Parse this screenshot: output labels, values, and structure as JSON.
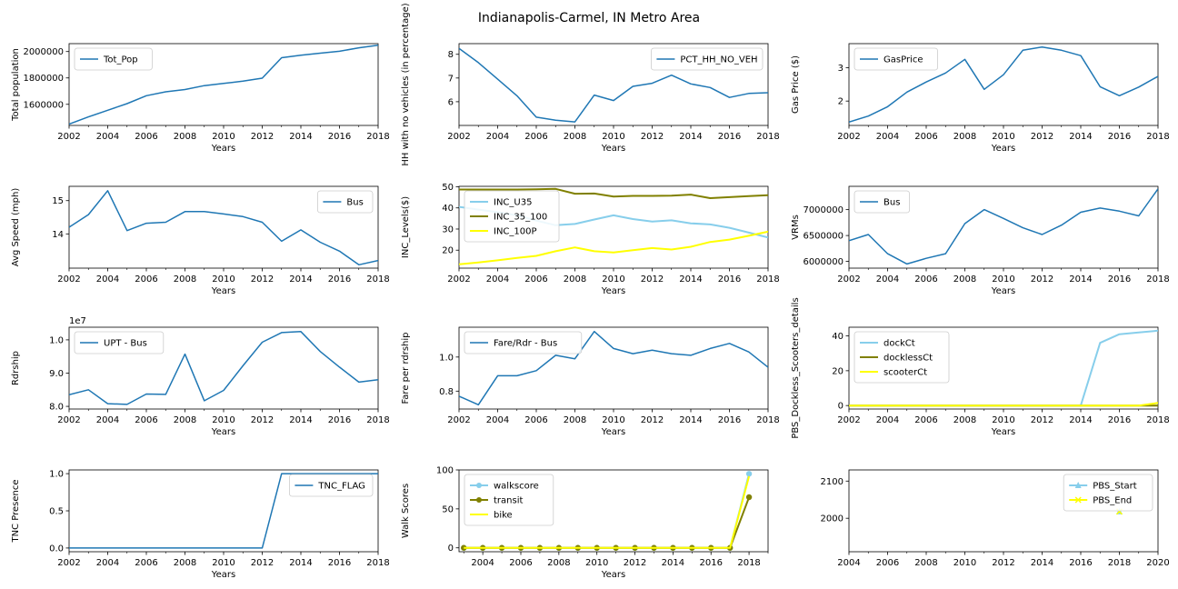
{
  "figure_title": "Indianapolis-Carmel, IN Metro Area",
  "colors": {
    "default_blue": "#1f77b4",
    "skyblue": "#87ceeb",
    "olive": "#808000",
    "yellow": "#ffff00"
  },
  "chart_data": [
    {
      "type": "line",
      "xlabel": "Years",
      "ylabel": "Total population",
      "xlim": [
        2002,
        2018
      ],
      "ylim": [
        1440000,
        2060000
      ],
      "xticks": [
        "2002",
        "2004",
        "2006",
        "2008",
        "2010",
        "2012",
        "2014",
        "2016",
        "2018"
      ],
      "yticks": [
        "1600000",
        "1800000",
        "2000000"
      ],
      "legend_loc": "upper-left",
      "x": [
        2002,
        2003,
        2004,
        2005,
        2006,
        2007,
        2008,
        2009,
        2010,
        2011,
        2012,
        2013,
        2014,
        2015,
        2016,
        2017,
        2018
      ],
      "series": [
        {
          "name": "Tot_Pop",
          "color": "#1f77b4",
          "marker": "none",
          "values": [
            1450000,
            1505000,
            1555000,
            1605000,
            1665000,
            1695000,
            1712000,
            1742000,
            1758000,
            1776000,
            1798000,
            1953000,
            1972000,
            1988000,
            2002000,
            2028000,
            2048000
          ]
        }
      ]
    },
    {
      "type": "line",
      "xlabel": "Years",
      "ylabel": "HH with no vehicles (in percentage)",
      "xlim": [
        2002,
        2018
      ],
      "ylim": [
        5.0,
        8.45
      ],
      "xticks": [
        "2002",
        "2004",
        "2006",
        "2008",
        "2010",
        "2012",
        "2014",
        "2016",
        "2018"
      ],
      "yticks": [
        "6",
        "7",
        "8"
      ],
      "legend_loc": "upper-right",
      "x": [
        2002,
        2003,
        2004,
        2005,
        2006,
        2007,
        2008,
        2009,
        2010,
        2011,
        2012,
        2013,
        2014,
        2015,
        2016,
        2017,
        2018
      ],
      "series": [
        {
          "name": "PCT_HH_NO_VEH",
          "color": "#1f77b4",
          "marker": "none",
          "values": [
            8.25,
            7.65,
            6.95,
            6.25,
            5.35,
            5.22,
            5.15,
            6.28,
            6.05,
            6.65,
            6.78,
            7.12,
            6.75,
            6.6,
            6.18,
            6.35,
            6.38
          ]
        }
      ]
    },
    {
      "type": "line",
      "xlabel": "Years",
      "ylabel": "Gas Price ($)",
      "xlim": [
        2002,
        2018
      ],
      "ylim": [
        1.27,
        3.72
      ],
      "xticks": [
        "2002",
        "2004",
        "2006",
        "2008",
        "2010",
        "2012",
        "2014",
        "2016",
        "2018"
      ],
      "yticks": [
        "2",
        "3"
      ],
      "legend_loc": "upper-left",
      "x": [
        2002,
        2003,
        2004,
        2005,
        2006,
        2007,
        2008,
        2009,
        2010,
        2011,
        2012,
        2013,
        2014,
        2015,
        2016,
        2017,
        2018
      ],
      "series": [
        {
          "name": "GasPrice",
          "color": "#1f77b4",
          "marker": "none",
          "values": [
            1.37,
            1.55,
            1.83,
            2.27,
            2.57,
            2.84,
            3.25,
            2.35,
            2.79,
            3.52,
            3.62,
            3.52,
            3.36,
            2.43,
            2.16,
            2.42,
            2.74
          ]
        }
      ]
    },
    {
      "type": "line",
      "xlabel": "Years",
      "ylabel": "Avg Speed (mph)",
      "xlim": [
        2002,
        2018
      ],
      "ylim": [
        12.97,
        15.43
      ],
      "xticks": [
        "2002",
        "2004",
        "2006",
        "2008",
        "2010",
        "2012",
        "2014",
        "2016",
        "2018"
      ],
      "yticks": [
        "14",
        "15"
      ],
      "legend_loc": "upper-right",
      "x": [
        2002,
        2003,
        2004,
        2005,
        2006,
        2007,
        2008,
        2009,
        2010,
        2011,
        2012,
        2013,
        2014,
        2015,
        2016,
        2017,
        2018
      ],
      "series": [
        {
          "name": "Bus",
          "color": "#1f77b4",
          "marker": "none",
          "values": [
            14.2,
            14.58,
            15.3,
            14.1,
            14.32,
            14.35,
            14.67,
            14.67,
            14.6,
            14.52,
            14.35,
            13.78,
            14.12,
            13.75,
            13.48,
            13.07,
            13.2
          ]
        }
      ]
    },
    {
      "type": "line",
      "xlabel": "Years",
      "ylabel": "INC_Levels($)",
      "xlim": [
        2002,
        2018
      ],
      "ylim": [
        11.5,
        50.2
      ],
      "xticks": [
        "2002",
        "2004",
        "2006",
        "2008",
        "2010",
        "2012",
        "2014",
        "2016",
        "2018"
      ],
      "yticks": [
        "20",
        "30",
        "40",
        "50"
      ],
      "legend_loc": "upper-left",
      "x": [
        2002,
        2003,
        2004,
        2005,
        2006,
        2007,
        2008,
        2009,
        2010,
        2011,
        2012,
        2013,
        2014,
        2015,
        2016,
        2017,
        2018
      ],
      "series": [
        {
          "name": "INC_U35",
          "color": "#87ceeb",
          "marker": "none",
          "values": [
            40.5,
            39.2,
            38.0,
            36.5,
            34.0,
            31.8,
            32.4,
            34.5,
            36.5,
            34.7,
            33.5,
            34.1,
            32.7,
            32.2,
            30.6,
            28.3,
            26.0
          ]
        },
        {
          "name": "INC_35_100",
          "color": "#808000",
          "marker": "none",
          "values": [
            48.7,
            48.7,
            48.7,
            48.7,
            48.8,
            49.0,
            46.7,
            46.8,
            45.4,
            45.7,
            45.7,
            45.8,
            46.3,
            44.6,
            45.1,
            45.6,
            46.0
          ]
        },
        {
          "name": "INC_100P",
          "color": "#ffff00",
          "marker": "none",
          "values": [
            13.3,
            14.2,
            15.2,
            16.3,
            17.3,
            19.5,
            21.3,
            19.5,
            18.9,
            20.0,
            21.0,
            20.3,
            21.6,
            23.9,
            25.0,
            26.8,
            28.8
          ]
        }
      ]
    },
    {
      "type": "line",
      "xlabel": "Years",
      "ylabel": "VRMs",
      "xlim": [
        2002,
        2018
      ],
      "ylim": [
        5870000,
        7450000
      ],
      "xticks": [
        "2002",
        "2004",
        "2006",
        "2008",
        "2010",
        "2012",
        "2014",
        "2016",
        "2018"
      ],
      "yticks": [
        "6000000",
        "6500000",
        "7000000"
      ],
      "legend_loc": "upper-left",
      "x": [
        2002,
        2003,
        2004,
        2005,
        2006,
        2007,
        2008,
        2009,
        2010,
        2011,
        2012,
        2013,
        2014,
        2015,
        2016,
        2017,
        2018
      ],
      "series": [
        {
          "name": "Bus",
          "color": "#1f77b4",
          "marker": "none",
          "values": [
            6400000,
            6520000,
            6150000,
            5950000,
            6060000,
            6150000,
            6730000,
            7000000,
            6830000,
            6650000,
            6520000,
            6700000,
            6950000,
            7030000,
            6970000,
            6880000,
            7400000
          ]
        }
      ]
    },
    {
      "type": "line",
      "xlabel": "Years",
      "ylabel": "Rdrship",
      "offset_text": "1e7",
      "xlim": [
        2002,
        2018
      ],
      "ylim": [
        7.92,
        10.38
      ],
      "xticks": [
        "2002",
        "2004",
        "2006",
        "2008",
        "2010",
        "2012",
        "2014",
        "2016",
        "2018"
      ],
      "yticks": [
        "8.0",
        "9.0",
        "1.0"
      ],
      "ytick_values": [
        8.0,
        9.0,
        10.0
      ],
      "legend_loc": "upper-left",
      "x": [
        2002,
        2003,
        2004,
        2005,
        2006,
        2007,
        2008,
        2009,
        2010,
        2011,
        2012,
        2013,
        2014,
        2015,
        2016,
        2017,
        2018
      ],
      "series": [
        {
          "name": "UPT - Bus",
          "color": "#1f77b4",
          "marker": "none",
          "values": [
            8.35,
            8.5,
            8.08,
            8.06,
            8.37,
            8.36,
            9.57,
            8.17,
            8.48,
            9.22,
            9.93,
            10.22,
            10.25,
            9.65,
            9.18,
            8.73,
            8.8
          ]
        }
      ]
    },
    {
      "type": "line",
      "xlabel": "Years",
      "ylabel": "Fare per rdrship",
      "xlim": [
        2002,
        2018
      ],
      "ylim": [
        0.695,
        1.175
      ],
      "xticks": [
        "2002",
        "2004",
        "2006",
        "2008",
        "2010",
        "2012",
        "2014",
        "2016",
        "2018"
      ],
      "yticks": [
        "0.8",
        "1.0"
      ],
      "legend_loc": "upper-left",
      "x": [
        2002,
        2003,
        2004,
        2005,
        2006,
        2007,
        2008,
        2009,
        2010,
        2011,
        2012,
        2013,
        2014,
        2015,
        2016,
        2017,
        2018
      ],
      "series": [
        {
          "name": "Fare/Rdr - Bus",
          "color": "#1f77b4",
          "marker": "none",
          "values": [
            0.77,
            0.72,
            0.89,
            0.89,
            0.92,
            1.01,
            0.99,
            1.15,
            1.05,
            1.02,
            1.04,
            1.02,
            1.01,
            1.05,
            1.08,
            1.03,
            0.94
          ]
        }
      ]
    },
    {
      "type": "line",
      "xlabel": "Years",
      "ylabel": "PBS_Dockless_Scooters_details",
      "xlim": [
        2002,
        2018
      ],
      "ylim": [
        -2,
        45
      ],
      "xticks": [
        "2002",
        "2004",
        "2006",
        "2008",
        "2010",
        "2012",
        "2014",
        "2016",
        "2018"
      ],
      "yticks": [
        "0",
        "20",
        "40"
      ],
      "legend_loc": "upper-left",
      "x": [
        2002,
        2003,
        2004,
        2005,
        2006,
        2007,
        2008,
        2009,
        2010,
        2011,
        2012,
        2013,
        2014,
        2015,
        2016,
        2017,
        2018
      ],
      "series": [
        {
          "name": "dockCt",
          "color": "#87ceeb",
          "marker": "none",
          "values": [
            0,
            0,
            0,
            0,
            0,
            0,
            0,
            0,
            0,
            0,
            0,
            0,
            0,
            36,
            41,
            42,
            43
          ]
        },
        {
          "name": "docklessCt",
          "color": "#808000",
          "marker": "none",
          "values": [
            0,
            0,
            0,
            0,
            0,
            0,
            0,
            0,
            0,
            0,
            0,
            0,
            0,
            0,
            0,
            0,
            0
          ]
        },
        {
          "name": "scooterCt",
          "color": "#ffff00",
          "marker": "none",
          "values": [
            0,
            0,
            0,
            0,
            0,
            0,
            0,
            0,
            0,
            0,
            0,
            0,
            0,
            0,
            0,
            0,
            1.5
          ]
        }
      ]
    },
    {
      "type": "line",
      "xlabel": "Years",
      "ylabel": "TNC Presence",
      "xlim": [
        2002,
        2018
      ],
      "ylim": [
        -0.05,
        1.05
      ],
      "xticks": [
        "2002",
        "2004",
        "2006",
        "2008",
        "2010",
        "2012",
        "2014",
        "2016",
        "2018"
      ],
      "yticks": [
        "0.0",
        "0.5",
        "1.0"
      ],
      "legend_loc": "upper-right",
      "x": [
        2002,
        2003,
        2004,
        2005,
        2006,
        2007,
        2008,
        2009,
        2010,
        2011,
        2012,
        2013,
        2014,
        2015,
        2016,
        2017,
        2018
      ],
      "series": [
        {
          "name": "TNC_FLAG",
          "color": "#1f77b4",
          "marker": "none",
          "values": [
            0,
            0,
            0,
            0,
            0,
            0,
            0,
            0,
            0,
            0,
            0,
            1,
            1,
            1,
            1,
            1,
            1
          ]
        }
      ]
    },
    {
      "type": "line",
      "xlabel": "Years",
      "ylabel": "Walk Scores",
      "xlim": [
        2002.75,
        2019.0
      ],
      "ylim": [
        -5,
        100
      ],
      "xticks": [
        "2004",
        "2006",
        "2008",
        "2010",
        "2012",
        "2014",
        "2016",
        "2018"
      ],
      "yticks": [
        "0",
        "50",
        "100"
      ],
      "legend_loc": "upper-left",
      "x": [
        2003,
        2004,
        2005,
        2006,
        2007,
        2008,
        2009,
        2010,
        2011,
        2012,
        2013,
        2014,
        2015,
        2016,
        2017,
        2018
      ],
      "series": [
        {
          "name": "walkscore",
          "color": "#87ceeb",
          "marker": "circle",
          "values": [
            0,
            0,
            0,
            0,
            0,
            0,
            0,
            0,
            0,
            0,
            0,
            0,
            0,
            0,
            0,
            95
          ]
        },
        {
          "name": "transit",
          "color": "#808000",
          "marker": "circle",
          "values": [
            0,
            0,
            0,
            0,
            0,
            0,
            0,
            0,
            0,
            0,
            0,
            0,
            0,
            0,
            0,
            65
          ]
        },
        {
          "name": "bike",
          "color": "#ffff00",
          "marker": "none",
          "values": [
            0,
            0,
            0,
            0,
            0,
            0,
            0,
            0,
            0,
            0,
            0,
            0,
            0,
            0,
            0,
            92
          ]
        }
      ]
    },
    {
      "type": "line",
      "xlabel": "",
      "ylabel": "",
      "xlim": [
        2004,
        2020
      ],
      "ylim": [
        1910,
        2130
      ],
      "xticks": [
        "2004",
        "2006",
        "2008",
        "2010",
        "2012",
        "2014",
        "2016",
        "2018",
        "2020"
      ],
      "yticks": [
        "2000",
        "2100"
      ],
      "legend_loc": "upper-right",
      "x": [
        2018
      ],
      "series": [
        {
          "name": "PBS_Start",
          "color": "#87ceeb",
          "marker": "triangle",
          "values": [
            2018
          ]
        },
        {
          "name": "PBS_End",
          "color": "#ffff00",
          "marker": "x",
          "values": [
            2018
          ]
        }
      ]
    }
  ]
}
